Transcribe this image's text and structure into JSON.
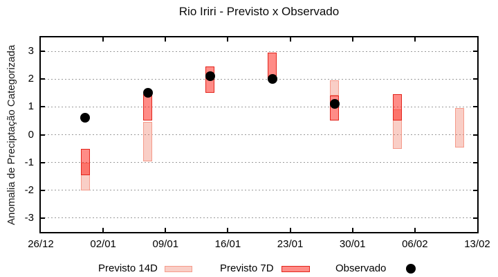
{
  "chart_data": {
    "type": "bar",
    "subtype": "vertical-range-bars-with-observed-points",
    "title": "Rio Iriri - Previsto x Observado",
    "xlabel": "",
    "ylabel": "Anomalia de Preciptação Categorizada",
    "ylim": [
      -3.5,
      3.5
    ],
    "yticks": [
      3,
      2,
      1,
      0,
      -1,
      -2,
      -3
    ],
    "ytick_labels": [
      "3",
      "2",
      "1",
      "0",
      "-1",
      "-2",
      "-3"
    ],
    "x_range_days": 49,
    "xticks_days": [
      0,
      7,
      14,
      21,
      28,
      35,
      42,
      49
    ],
    "xtick_labels": [
      "26/12",
      "02/01",
      "09/01",
      "16/01",
      "23/01",
      "30/01",
      "06/02",
      "13/02"
    ],
    "grid": "horizontal-dotted",
    "grid_color": "#999999",
    "legend_position": "bottom-center",
    "series": [
      {
        "name": "Previsto 14D",
        "type": "range",
        "fill": "rgba(235,80,50,0.28)",
        "fill_hex_on_white": "#f9cec6",
        "border": "#f59a8a",
        "points": [
          {
            "day": 5,
            "low": -2.0,
            "high": -1.0
          },
          {
            "day": 12,
            "low": -0.95,
            "high": 0.45
          },
          {
            "day": 33,
            "low": 1.4,
            "high": 1.95
          },
          {
            "day": 40,
            "low": -0.5,
            "high": 0.9
          },
          {
            "day": 47,
            "low": -0.45,
            "high": 0.95
          }
        ]
      },
      {
        "name": "Previsto 7D",
        "type": "range",
        "fill": "rgba(255,25,15,0.50)",
        "fill_hex_on_white": "#fb9288",
        "border": "#e2241b",
        "points": [
          {
            "day": 5,
            "low": -1.45,
            "high": -0.5
          },
          {
            "day": 12,
            "low": 0.5,
            "high": 1.45
          },
          {
            "day": 19,
            "low": 1.5,
            "high": 2.45
          },
          {
            "day": 26,
            "low": 2.0,
            "high": 2.95
          },
          {
            "day": 33,
            "low": 0.5,
            "high": 1.4
          },
          {
            "day": 40,
            "low": 0.5,
            "high": 1.45
          }
        ]
      },
      {
        "name": "Observado",
        "type": "scatter",
        "color": "#000000",
        "points": [
          {
            "day": 5,
            "value": 0.6
          },
          {
            "day": 12,
            "value": 1.5
          },
          {
            "day": 19,
            "value": 2.1
          },
          {
            "day": 26,
            "value": 2.0
          },
          {
            "day": 33,
            "value": 1.1
          }
        ]
      }
    ]
  }
}
